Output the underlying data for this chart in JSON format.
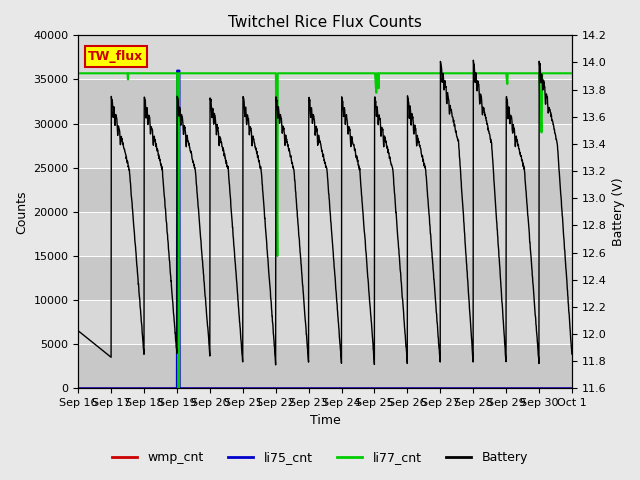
{
  "title": "Twitchel Rice Flux Counts",
  "xlabel": "Time",
  "ylabel_left": "Counts",
  "ylabel_right": "Battery (V)",
  "ylim_left": [
    0,
    40000
  ],
  "ylim_right": [
    11.6,
    14.2
  ],
  "yticks_left": [
    0,
    5000,
    10000,
    15000,
    20000,
    25000,
    30000,
    35000,
    40000
  ],
  "yticks_right": [
    11.6,
    11.8,
    12.0,
    12.2,
    12.4,
    12.6,
    12.8,
    13.0,
    13.2,
    13.4,
    13.6,
    13.8,
    14.0,
    14.2
  ],
  "x_labels": [
    "Sep 16",
    "Sep 17",
    "Sep 18",
    "Sep 19",
    "Sep 20",
    "Sep 21",
    "Sep 22",
    "Sep 23",
    "Sep 24",
    "Sep 25",
    "Sep 26",
    "Sep 27",
    "Sep 28",
    "Sep 29",
    "Sep 30",
    "Oct 1"
  ],
  "wmp_cnt_color": "#cc0000",
  "li75_cnt_color": "#0000cc",
  "li77_cnt_color": "#00cc00",
  "battery_color": "#000000",
  "background_color": "#e8e8e8",
  "plot_bg_color": "#d3d3d3",
  "annotation_box_fill": "#ffff00",
  "annotation_box_edge": "#cc0000",
  "annotation_text": "TW_flux",
  "annotation_text_color": "#cc0000",
  "title_fontsize": 11,
  "axis_label_fontsize": 9,
  "tick_fontsize": 8,
  "legend_fontsize": 9,
  "n_days": 15,
  "li77_base": 35700,
  "li75_spike_day": 3,
  "li75_spike_val": 36000,
  "bat_peak": 13.4,
  "bat_valley": 11.85,
  "grid_color": "#ffffff",
  "grid_linewidth": 0.7,
  "battery_linewidth": 1.0,
  "li77_linewidth": 1.5,
  "li75_linewidth": 1.5,
  "wmp_linewidth": 1.0
}
